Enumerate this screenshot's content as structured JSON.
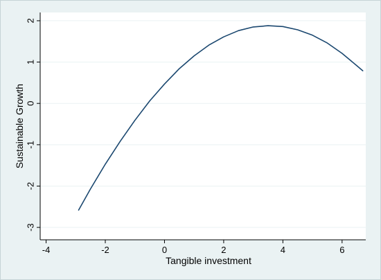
{
  "chart_data": {
    "type": "line",
    "title": "",
    "xlabel": "Tangible investment",
    "ylabel": "Sustainable Growth",
    "xlim": [
      -4.2,
      6.8
    ],
    "ylim": [
      -3.3,
      2.2
    ],
    "xticks": [
      -4,
      -2,
      0,
      2,
      4,
      6
    ],
    "yticks": [
      -3,
      -2,
      -1,
      0,
      1,
      2
    ],
    "grid": true,
    "legend": "none",
    "series": [
      {
        "x": [
          -2.9,
          -2.5,
          -2.0,
          -1.5,
          -1.0,
          -0.5,
          0.0,
          0.5,
          1.0,
          1.5,
          2.0,
          2.5,
          3.0,
          3.5,
          4.0,
          4.5,
          5.0,
          5.5,
          6.0,
          6.5,
          6.7
        ],
        "y": [
          -2.58,
          -2.07,
          -1.47,
          -0.92,
          -0.41,
          0.06,
          0.47,
          0.84,
          1.15,
          1.41,
          1.61,
          1.76,
          1.85,
          1.88,
          1.86,
          1.78,
          1.65,
          1.46,
          1.21,
          0.91,
          0.79
        ]
      }
    ],
    "colors": {
      "line": "#1a476f",
      "grid": "#eaf2f3",
      "plot_bg": "#ffffff",
      "outer_bg": "#eaf2f3"
    }
  }
}
